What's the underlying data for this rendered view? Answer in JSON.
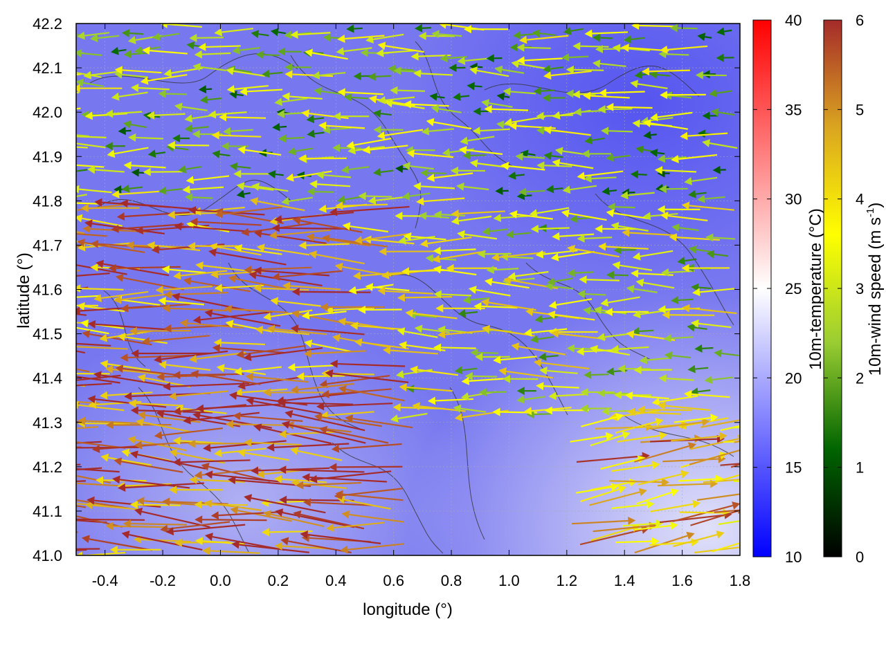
{
  "chart_data": {
    "type": "vector_field_over_heatmap",
    "xlabel": "longitude (°)",
    "ylabel": "latitude (°)",
    "xlim": [
      -0.5,
      1.8
    ],
    "ylim": [
      41.0,
      42.2
    ],
    "x_ticks": [
      "-0.4",
      "-0.2",
      "0.0",
      "0.2",
      "0.4",
      "0.6",
      "0.8",
      "1.0",
      "1.2",
      "1.4",
      "1.6",
      "1.8"
    ],
    "y_ticks": [
      "41.0",
      "41.1",
      "41.2",
      "41.3",
      "41.4",
      "41.5",
      "41.6",
      "41.7",
      "41.8",
      "41.9",
      "42.0",
      "42.1",
      "42.2"
    ],
    "grid": true,
    "temperature_colorbar": {
      "label": "10m-temperature (°C)",
      "range": [
        10,
        40
      ],
      "ticks": [
        "10",
        "15",
        "20",
        "25",
        "30",
        "35",
        "40"
      ],
      "colors": [
        "#0000ff",
        "#ffffff",
        "#ff0000"
      ]
    },
    "wind_colorbar": {
      "label_main": "10m-wind speed (m s",
      "label_exp": "-1",
      "label_close": ")",
      "range": [
        0,
        6
      ],
      "ticks": [
        "0",
        "1",
        "2",
        "3",
        "4",
        "5",
        "6"
      ],
      "colors": [
        "#000000",
        "#006400",
        "#9acd32",
        "#ffff00",
        "#daa520",
        "#a52a2a"
      ]
    },
    "background_temperature_range": [
      15,
      24
    ],
    "wind_regions": [
      {
        "region": "north",
        "lon": [
          -0.5,
          1.8
        ],
        "lat": [
          41.8,
          42.2
        ],
        "u": -2.0,
        "v": 0.0,
        "speed": 2.5
      },
      {
        "region": "west-middle",
        "lon": [
          -0.5,
          0.7
        ],
        "lat": [
          41.4,
          41.8
        ],
        "u": -4.5,
        "v": 0.1,
        "speed": 5.0
      },
      {
        "region": "southwest",
        "lon": [
          -0.5,
          0.7
        ],
        "lat": [
          41.0,
          41.4
        ],
        "u": -5.0,
        "v": 0.3,
        "speed": 5.5
      },
      {
        "region": "east-middle",
        "lon": [
          0.7,
          1.8
        ],
        "lat": [
          41.3,
          41.8
        ],
        "u": -2.5,
        "v": 0.0,
        "speed": 3.0
      },
      {
        "region": "southeast",
        "lon": [
          1.2,
          1.8
        ],
        "lat": [
          41.0,
          41.3
        ],
        "u": 4.0,
        "v": 0.6,
        "speed": 4.5
      }
    ]
  }
}
